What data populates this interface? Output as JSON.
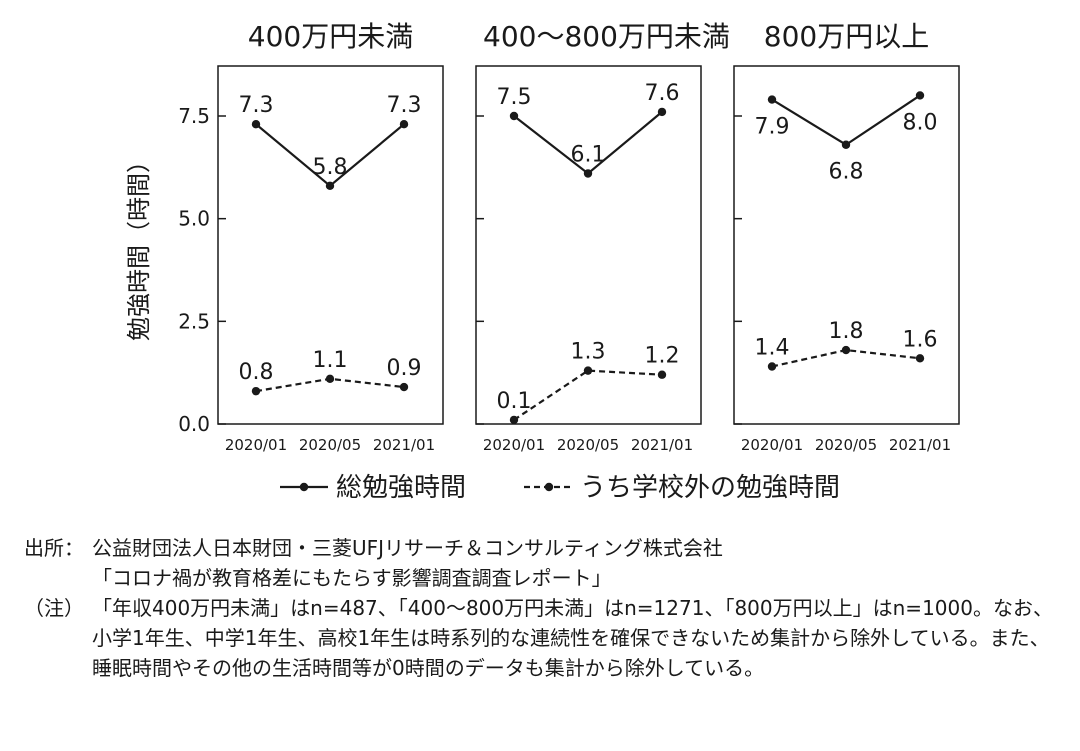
{
  "chart_data": {
    "type": "line",
    "ylabel": "勉強時間（時間）",
    "ylim": [
      0,
      8.5
    ],
    "yticks": [
      "0.0",
      "2.5",
      "5.0",
      "7.5"
    ],
    "categories": [
      "2020/01",
      "2020/05",
      "2021/01"
    ],
    "panels": [
      {
        "title": "400万円未満",
        "series": [
          {
            "name": "総勉強時間",
            "values": [
              7.3,
              5.8,
              7.3
            ],
            "labels": [
              "7.3",
              "5.8",
              "7.3"
            ]
          },
          {
            "name": "うち学校外の勉強時間",
            "values": [
              0.8,
              1.1,
              0.9
            ],
            "labels": [
              "0.8",
              "1.1",
              "0.9"
            ]
          }
        ]
      },
      {
        "title": "400～800万円未満",
        "series": [
          {
            "name": "総勉強時間",
            "values": [
              7.5,
              6.1,
              7.6
            ],
            "labels": [
              "7.5",
              "6.1",
              "7.6"
            ]
          },
          {
            "name": "うち学校外の勉強時間",
            "values": [
              0.1,
              1.3,
              1.2
            ],
            "labels": [
              "0.1",
              "1.3",
              "1.2"
            ]
          }
        ]
      },
      {
        "title": "800万円以上",
        "series": [
          {
            "name": "総勉強時間",
            "values": [
              7.9,
              6.8,
              8.0
            ],
            "labels": [
              "7.9",
              "6.8",
              "8.0"
            ]
          },
          {
            "name": "うち学校外の勉強時間",
            "values": [
              1.4,
              1.8,
              1.6
            ],
            "labels": [
              "1.4",
              "1.8",
              "1.6"
            ]
          }
        ]
      }
    ],
    "legend": [
      "総勉強時間",
      "うち学校外の勉強時間"
    ]
  },
  "notes": {
    "source_label": "出所：",
    "source_line1": "公益財団法人日本財団・三菱UFJリサーチ＆コンサルティング株式会社",
    "source_line2": "「コロナ禍が教育格差にもたらす影響調査調査レポート」",
    "note_label": "（注）",
    "note_text": "「年収400万円未満」はn=487、「400～800万円未満」はn=1271、「800万円以上」はn=1000。なお、小学1年生、中学1年生、高校1年生は時系列的な連続性を確保できないため集計から除外している。また、睡眠時間やその他の生活時間等が0時間のデータも集計から除外している。"
  }
}
